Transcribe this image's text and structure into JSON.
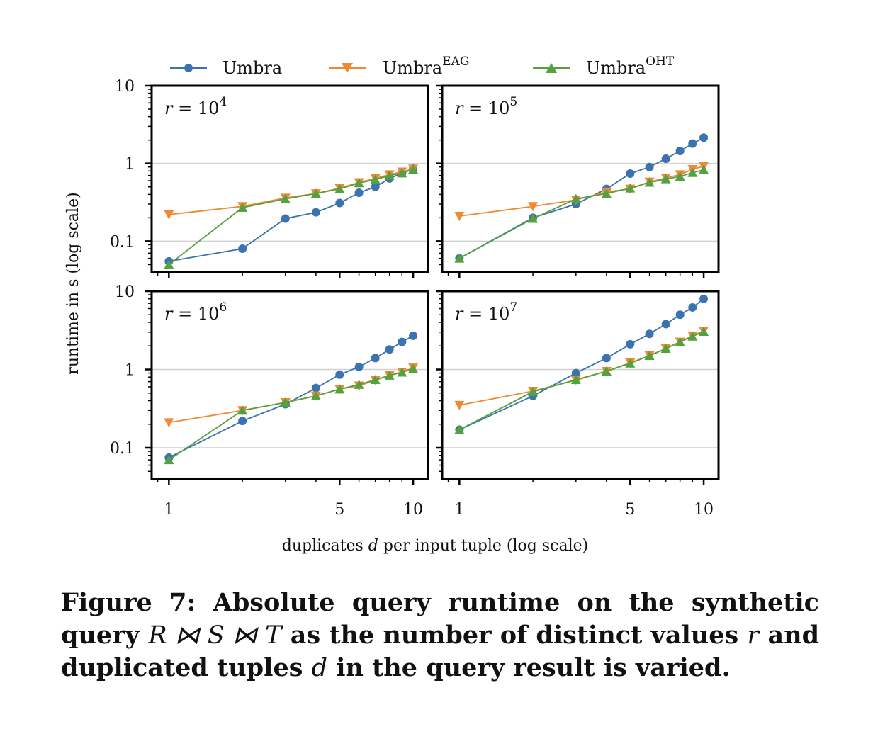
{
  "legend": {
    "items": [
      {
        "label": "Umbra",
        "sup": "",
        "marker": "circle",
        "color": "#3b73ae"
      },
      {
        "label": "Umbra",
        "sup": "EAG",
        "marker": "triangle-down",
        "color": "#ee8a35"
      },
      {
        "label": "Umbra",
        "sup": "OHT",
        "marker": "triangle-up",
        "color": "#56a040"
      }
    ]
  },
  "axes": {
    "ylabel": "runtime in s (log scale)",
    "xlabel_pre": "duplicates",
    "xlabel_var": "d",
    "xlabel_post": "per input tuple (log scale)",
    "x_tick_labels": [
      "1",
      "5",
      "10"
    ],
    "y_tick_labels": [
      "0.1",
      "1",
      "10"
    ]
  },
  "caption": {
    "prefix": "Figure 7: Absolute query runtime on the synthetic query",
    "math1": "R ⋈ S ⋈ T",
    "mid": "as the number of distinct values",
    "math2": "r",
    "mid2": "and duplicated tuples",
    "math3": "d",
    "suffix": "in the query result is varied."
  },
  "chart_data": [
    {
      "type": "line",
      "panel_label": "r = 10^4",
      "x_scale": "log",
      "y_scale": "log",
      "xlim": [
        0.85,
        11.5
      ],
      "ylim": [
        0.04,
        10
      ],
      "x": [
        1,
        2,
        3,
        4,
        5,
        6,
        7,
        8,
        9,
        10
      ],
      "series": [
        {
          "name": "Umbra",
          "values": [
            0.055,
            0.08,
            0.195,
            0.235,
            0.31,
            0.42,
            0.5,
            0.64,
            0.75,
            0.86
          ]
        },
        {
          "name": "Umbra^EAG",
          "values": [
            0.22,
            0.28,
            0.36,
            0.41,
            0.48,
            0.57,
            0.64,
            0.72,
            0.78,
            0.85
          ]
        },
        {
          "name": "Umbra^OHT",
          "values": [
            0.05,
            0.27,
            0.35,
            0.41,
            0.47,
            0.56,
            0.62,
            0.7,
            0.75,
            0.84
          ]
        }
      ],
      "grid": "horizontal"
    },
    {
      "type": "line",
      "panel_label": "r = 10^5",
      "x_scale": "log",
      "y_scale": "log",
      "xlim": [
        0.85,
        11.5
      ],
      "ylim": [
        0.04,
        10
      ],
      "x": [
        1,
        2,
        3,
        4,
        5,
        6,
        7,
        8,
        9,
        10
      ],
      "series": [
        {
          "name": "Umbra",
          "values": [
            0.06,
            0.2,
            0.3,
            0.47,
            0.74,
            0.9,
            1.15,
            1.45,
            1.8,
            2.15
          ]
        },
        {
          "name": "Umbra^EAG",
          "values": [
            0.21,
            0.28,
            0.34,
            0.43,
            0.47,
            0.58,
            0.65,
            0.72,
            0.84,
            0.92
          ]
        },
        {
          "name": "Umbra^OHT",
          "values": [
            0.06,
            0.195,
            0.35,
            0.41,
            0.48,
            0.57,
            0.63,
            0.68,
            0.76,
            0.83
          ]
        }
      ],
      "grid": "horizontal"
    },
    {
      "type": "line",
      "panel_label": "r = 10^6",
      "x_scale": "log",
      "y_scale": "log",
      "xlim": [
        0.85,
        11.5
      ],
      "ylim": [
        0.04,
        10
      ],
      "x": [
        1,
        2,
        3,
        4,
        5,
        6,
        7,
        8,
        9,
        10
      ],
      "series": [
        {
          "name": "Umbra",
          "values": [
            0.075,
            0.22,
            0.36,
            0.58,
            0.86,
            1.08,
            1.4,
            1.8,
            2.25,
            2.7
          ]
        },
        {
          "name": "Umbra^EAG",
          "values": [
            0.21,
            0.3,
            0.38,
            0.46,
            0.56,
            0.62,
            0.73,
            0.84,
            0.93,
            1.05
          ]
        },
        {
          "name": "Umbra^OHT",
          "values": [
            0.07,
            0.3,
            0.38,
            0.46,
            0.56,
            0.64,
            0.74,
            0.84,
            0.92,
            1.02
          ]
        }
      ],
      "grid": "horizontal"
    },
    {
      "type": "line",
      "panel_label": "r = 10^7",
      "x_scale": "log",
      "y_scale": "log",
      "xlim": [
        0.85,
        11.5
      ],
      "ylim": [
        0.04,
        10
      ],
      "x": [
        1,
        2,
        3,
        4,
        5,
        6,
        7,
        8,
        9,
        10
      ],
      "series": [
        {
          "name": "Umbra",
          "values": [
            0.17,
            0.46,
            0.9,
            1.4,
            2.1,
            2.85,
            3.8,
            5.0,
            6.2,
            8.0
          ]
        },
        {
          "name": "Umbra^EAG",
          "values": [
            0.35,
            0.53,
            0.73,
            0.95,
            1.22,
            1.5,
            1.85,
            2.25,
            2.7,
            3.1
          ]
        },
        {
          "name": "Umbra^OHT",
          "values": [
            0.17,
            0.52,
            0.74,
            0.95,
            1.2,
            1.5,
            1.85,
            2.25,
            2.65,
            3.05
          ]
        }
      ],
      "grid": "horizontal"
    }
  ]
}
